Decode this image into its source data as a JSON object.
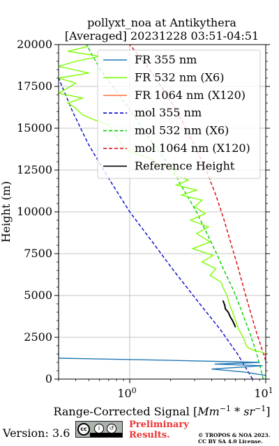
{
  "chart_data": {
    "type": "line",
    "title": "pollyxt_noa at Antikythera",
    "subtitle": "[Averaged] 20231228 03:51-04:51",
    "xlabel": "Range-Corrected Signal [Mm⁻¹ * sr⁻¹]",
    "xlabel_parts": {
      "base": "Range-Corrected Signal [",
      "m1": "Mm",
      "e1": "−1",
      "mid": "*",
      "m2": "sr",
      "e2": "−1",
      "end": "]"
    },
    "ylabel": "Height (m)",
    "xscale": "log",
    "xlim": [
      0.3,
      10
    ],
    "ylim": [
      0,
      20000
    ],
    "x_tick_labels": [
      "10",
      "0",
      "10",
      "1"
    ],
    "y_ticks": [
      0,
      2500,
      5000,
      7500,
      10000,
      12500,
      15000,
      17500,
      20000
    ],
    "y_tick_labels": [
      "0",
      "2500",
      "5000",
      "7500",
      "10000",
      "12500",
      "15000",
      "17500",
      "20000"
    ],
    "grid": true,
    "legend_position": "top-right",
    "series": [
      {
        "name": "FR 355 nm",
        "color": "#1f77b4",
        "style": "solid",
        "points": [
          [
            10,
            220
          ],
          [
            7.0,
            420
          ],
          [
            4.0,
            600
          ],
          [
            9.5,
            800
          ],
          [
            4.2,
            900
          ],
          [
            9.0,
            1000
          ],
          [
            2.0,
            1120
          ],
          [
            0.3,
            1250
          ],
          [
            0.3,
            16150
          ],
          [
            0.3,
            16300
          ]
        ]
      },
      {
        "name": "FR 532 nm (X6)",
        "color": "#7cfc00",
        "style": "solid",
        "points": [
          [
            10,
            1450
          ],
          [
            9.5,
            1600
          ],
          [
            8.3,
            1700
          ],
          [
            7.5,
            1850
          ],
          [
            7.2,
            2000
          ],
          [
            7.0,
            2300
          ],
          [
            6.7,
            2600
          ],
          [
            6.3,
            3000
          ],
          [
            6.0,
            3500
          ],
          [
            5.7,
            4000
          ],
          [
            5.4,
            4500
          ],
          [
            5.2,
            5000
          ],
          [
            4.9,
            5400
          ],
          [
            4.7,
            5800
          ],
          [
            3.9,
            6200
          ],
          [
            4.3,
            6600
          ],
          [
            3.4,
            7000
          ],
          [
            4.1,
            7400
          ],
          [
            2.9,
            7800
          ],
          [
            3.9,
            8200
          ],
          [
            3.1,
            8700
          ],
          [
            3.8,
            9100
          ],
          [
            2.8,
            9500
          ],
          [
            3.6,
            9900
          ],
          [
            3.0,
            10300
          ],
          [
            3.4,
            10700
          ],
          [
            2.4,
            11000
          ],
          [
            3.1,
            11300
          ],
          [
            2.2,
            11600
          ],
          [
            2.7,
            11900
          ],
          [
            2.1,
            12200
          ],
          [
            2.2,
            12500
          ],
          [
            1.6,
            12800
          ],
          [
            1.5,
            13100
          ],
          [
            1.2,
            13400
          ],
          [
            1.0,
            13600
          ],
          [
            0.9,
            13900
          ],
          [
            0.85,
            14200
          ],
          [
            0.8,
            14500
          ],
          [
            0.75,
            14800
          ],
          [
            0.7,
            15200
          ],
          [
            0.55,
            15500
          ],
          [
            0.45,
            15800
          ],
          [
            0.4,
            16200
          ],
          [
            0.35,
            16500
          ],
          [
            0.45,
            16800
          ],
          [
            0.3,
            17100
          ],
          [
            0.35,
            17400
          ],
          [
            0.4,
            17700
          ],
          [
            0.3,
            18000
          ],
          [
            0.5,
            18300
          ],
          [
            0.3,
            18700
          ],
          [
            0.4,
            19000
          ],
          [
            0.6,
            19300
          ],
          [
            0.35,
            19600
          ],
          [
            0.5,
            19900
          ]
        ]
      },
      {
        "name": "FR 1064 nm (X120)",
        "color": "#ff7f50",
        "style": "solid",
        "points": [
          [
            10,
            1400
          ],
          [
            9.7,
            1550
          ]
        ]
      },
      {
        "name": "mol 355 nm",
        "color": "#0000cd",
        "style": "dashed",
        "points": [
          [
            8.0,
            0
          ],
          [
            6.2,
            1500
          ],
          [
            4.6,
            3000
          ],
          [
            3.2,
            4600
          ],
          [
            2.1,
            6500
          ],
          [
            1.5,
            8100
          ],
          [
            1.0,
            10000
          ],
          [
            0.7,
            12000
          ],
          [
            0.5,
            14000
          ],
          [
            0.38,
            16000
          ],
          [
            0.3,
            18000
          ]
        ]
      },
      {
        "name": "mol 532 nm (X6)",
        "color": "#00cc00",
        "style": "dashed",
        "points": [
          [
            9.6,
            0
          ],
          [
            8.6,
            1500
          ],
          [
            7.6,
            2800
          ],
          [
            6.7,
            4000
          ],
          [
            5.8,
            5300
          ],
          [
            5.0,
            6400
          ],
          [
            4.3,
            7600
          ],
          [
            3.7,
            8700
          ],
          [
            3.1,
            10000
          ],
          [
            2.5,
            11300
          ],
          [
            2.0,
            12700
          ],
          [
            1.5,
            14000
          ],
          [
            1.15,
            15400
          ],
          [
            0.85,
            16900
          ],
          [
            0.62,
            18400
          ],
          [
            0.48,
            20000
          ]
        ]
      },
      {
        "name": "mol 1064 nm (X120)",
        "color": "#dd0000",
        "style": "dashed",
        "points": [
          [
            10,
            1100
          ],
          [
            9.2,
            2000
          ],
          [
            8.4,
            3000
          ],
          [
            7.6,
            4200
          ],
          [
            6.9,
            5400
          ],
          [
            6.2,
            6800
          ],
          [
            5.5,
            8200
          ],
          [
            4.9,
            9600
          ],
          [
            4.3,
            11000
          ],
          [
            3.6,
            12600
          ],
          [
            2.9,
            14200
          ],
          [
            2.3,
            15800
          ],
          [
            1.8,
            17200
          ],
          [
            1.35,
            18700
          ],
          [
            1.0,
            20000
          ]
        ]
      },
      {
        "name": "Reference Height",
        "color": "#000000",
        "style": "solid",
        "points": [
          [
            4.85,
            4700
          ],
          [
            5.0,
            4400
          ],
          [
            5.05,
            4200
          ],
          [
            5.3,
            4000
          ],
          [
            5.5,
            3700
          ],
          [
            5.7,
            3500
          ],
          [
            5.85,
            3300
          ],
          [
            6.0,
            3100
          ]
        ]
      }
    ]
  },
  "footer": {
    "version": "Version: 3.6",
    "license_badge": {
      "cc": "cc",
      "by": "i",
      "sa": "↺",
      "text": "BY  SA"
    },
    "preliminary_line1": "Preliminary",
    "preliminary_line2": "Results.",
    "copyright_line1": "© TROPOS & NOA 2023.",
    "copyright_line2": "CC BY SA 4.0 License."
  }
}
